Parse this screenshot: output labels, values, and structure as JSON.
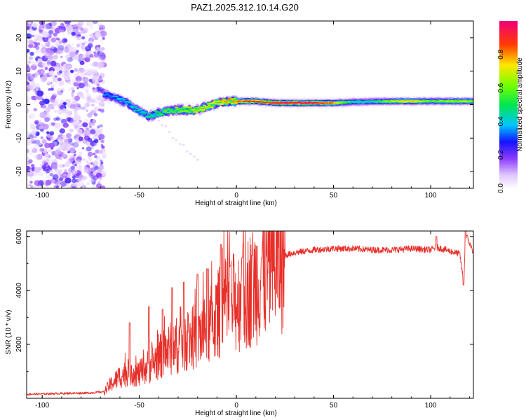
{
  "title": "PAZ1.2025.312.10.14.G20",
  "chart_data": [
    {
      "type": "heatmap",
      "name": "spectrogram",
      "xlabel": "Height of straight line (km)",
      "ylabel": "Frequency (Hz)",
      "xlim": [
        -108,
        122
      ],
      "ylim": [
        -25,
        25
      ],
      "xticks": [
        -100,
        -50,
        0,
        50,
        100
      ],
      "yticks": [
        20,
        10,
        0,
        -10,
        -20
      ],
      "colorbar": {
        "label": "Normalized spectral amplitude",
        "range": [
          0,
          1
        ],
        "ticks": [
          0.0,
          0.2,
          0.4,
          0.6,
          0.8
        ]
      },
      "noise_region_x": [
        -108,
        -68
      ],
      "signal_track": {
        "x": [
          -68,
          -60,
          -55,
          -50,
          -45,
          -40,
          -35,
          -30,
          -25,
          -20,
          -15,
          -10,
          -5,
          0,
          10,
          20,
          30,
          40,
          50,
          60,
          70,
          80,
          90,
          100,
          110,
          122
        ],
        "freq": [
          3,
          1.5,
          0,
          -2,
          -3.5,
          -2.5,
          -2,
          -1.5,
          -1.5,
          -1.5,
          -0.5,
          0.5,
          1,
          1,
          1,
          0.5,
          0.5,
          0.5,
          0.5,
          0.8,
          0.9,
          1,
          1,
          1,
          1,
          1
        ],
        "amplitude": [
          0.35,
          0.4,
          0.45,
          0.45,
          0.5,
          0.55,
          0.6,
          0.65,
          0.7,
          0.75,
          0.75,
          0.8,
          0.85,
          0.85,
          0.95,
          0.95,
          1.0,
          1.0,
          0.85,
          0.5,
          0.5,
          0.7,
          0.8,
          0.6,
          0.7,
          0.7
        ]
      },
      "artifact_tail": {
        "x": [
          -40,
          -20
        ],
        "freq": [
          -5,
          -17
        ]
      }
    },
    {
      "type": "line",
      "name": "snr",
      "xlabel": "Height of straight line (km)",
      "ylabel": "SNR (10 * v/v)",
      "xlim": [
        -108,
        122
      ],
      "ylim": [
        0,
        6200
      ],
      "xticks": [
        -100,
        -50,
        0,
        50,
        100
      ],
      "yticks": [
        2000,
        4000,
        6000
      ],
      "color": "#e8302a",
      "series": [
        {
          "name": "SNR",
          "x": [
            -108,
            -90,
            -75,
            -68,
            -65,
            -60,
            -55,
            -50,
            -45,
            -40,
            -35,
            -30,
            -25,
            -20,
            -15,
            -10,
            -7,
            -5,
            0,
            5,
            10,
            15,
            20,
            25,
            30,
            40,
            50,
            60,
            70,
            80,
            90,
            100,
            103,
            110,
            115,
            117,
            118,
            122
          ],
          "y": [
            150,
            180,
            200,
            250,
            500,
            800,
            1000,
            900,
            1200,
            1500,
            1800,
            2000,
            2200,
            2300,
            2600,
            3000,
            3500,
            3300,
            3600,
            3900,
            4300,
            4700,
            5000,
            5300,
            5400,
            5500,
            5550,
            5550,
            5500,
            5500,
            5550,
            5500,
            5600,
            5450,
            5350,
            4300,
            6100,
            5400
          ]
        }
      ],
      "spikes": [
        {
          "x": -55,
          "y": 2800
        },
        {
          "x": -45,
          "y": 3400
        },
        {
          "x": -38,
          "y": 3300
        },
        {
          "x": -33,
          "y": 4100
        },
        {
          "x": -27,
          "y": 4300
        },
        {
          "x": -20,
          "y": 4600
        },
        {
          "x": -15,
          "y": 4800
        },
        {
          "x": -8,
          "y": 5700
        },
        {
          "x": -3,
          "y": 4900
        },
        {
          "x": 3,
          "y": 5200
        },
        {
          "x": 8,
          "y": 5300
        },
        {
          "x": 13,
          "y": 5200
        },
        {
          "x": 103,
          "y": 6000
        },
        {
          "x": 117,
          "y": 4200
        },
        {
          "x": 118,
          "y": 6200
        }
      ]
    }
  ]
}
